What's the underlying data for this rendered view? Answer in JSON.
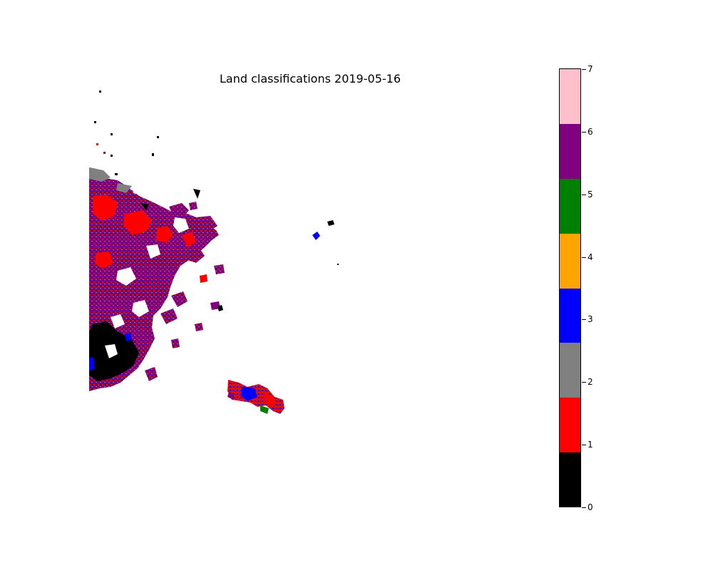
{
  "title": "Land classifications 2019-05-16",
  "colorbar": {
    "min": 0,
    "max": 7,
    "ticks": [
      "0",
      "1",
      "2",
      "3",
      "4",
      "5",
      "6",
      "7"
    ],
    "classes": [
      {
        "value": 0,
        "color": "#000000"
      },
      {
        "value": 1,
        "color": "#ff0000"
      },
      {
        "value": 2,
        "color": "#808080"
      },
      {
        "value": 3,
        "color": "#0000ff"
      },
      {
        "value": 4,
        "color": "#ffa500"
      },
      {
        "value": 5,
        "color": "#008000"
      },
      {
        "value": 6,
        "color": "#800080"
      },
      {
        "value": 7,
        "color": "#ffc0cb"
      }
    ]
  },
  "map": {
    "dominant_classes": [
      "purple",
      "red",
      "black",
      "blue",
      "gray"
    ]
  }
}
